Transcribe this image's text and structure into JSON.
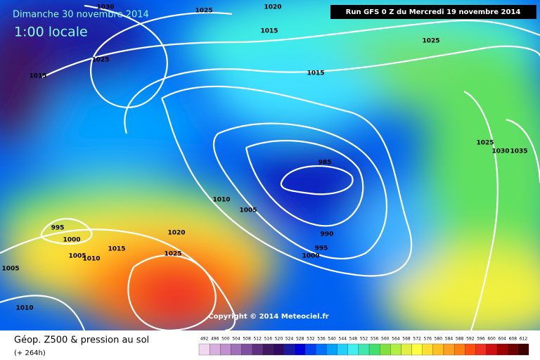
{
  "header": {
    "date": "Dimanche 30 novembre 2014",
    "time": "1:00 locale",
    "run": "Run GFS 0 Z du Mercredi 19 novembre 2014"
  },
  "isobar_labels": [
    "1030",
    "1025",
    "1020",
    "1015",
    "1025",
    "1025",
    "1015",
    "1015",
    "985",
    "1025",
    "1030",
    "1035",
    "1010",
    "1005",
    "995",
    "1000",
    "1020",
    "990",
    "1015",
    "995",
    "1005",
    "1010",
    "1000",
    "1025",
    "1005",
    "1010"
  ],
  "copyright": "Copyright © 2014 Meteociel.fr",
  "footer": {
    "title": "Géop. Z500 & pression au sol",
    "lead": "(+ 264h)"
  },
  "legend": {
    "ticks": [
      492,
      496,
      500,
      504,
      508,
      512,
      516,
      520,
      524,
      528,
      532,
      536,
      540,
      544,
      548,
      552,
      556,
      560,
      564,
      568,
      572,
      576,
      580,
      584,
      588,
      592,
      596,
      600,
      604,
      608,
      612
    ],
    "colors": [
      "#f0d8f0",
      "#d8b0e0",
      "#c090d0",
      "#a070b8",
      "#8050a0",
      "#603080",
      "#401860",
      "#300a60",
      "#1a1aa0",
      "#0000d8",
      "#0040f0",
      "#0070ff",
      "#00a0ff",
      "#20d0ff",
      "#40f0f0",
      "#40e8b0",
      "#40e070",
      "#80e040",
      "#b0f040",
      "#e0f040",
      "#ffff40",
      "#ffe030",
      "#ffc020",
      "#ffa020",
      "#ff8010",
      "#ff5010",
      "#f03020",
      "#d01010",
      "#a00000",
      "#700000",
      "#400000"
    ]
  }
}
